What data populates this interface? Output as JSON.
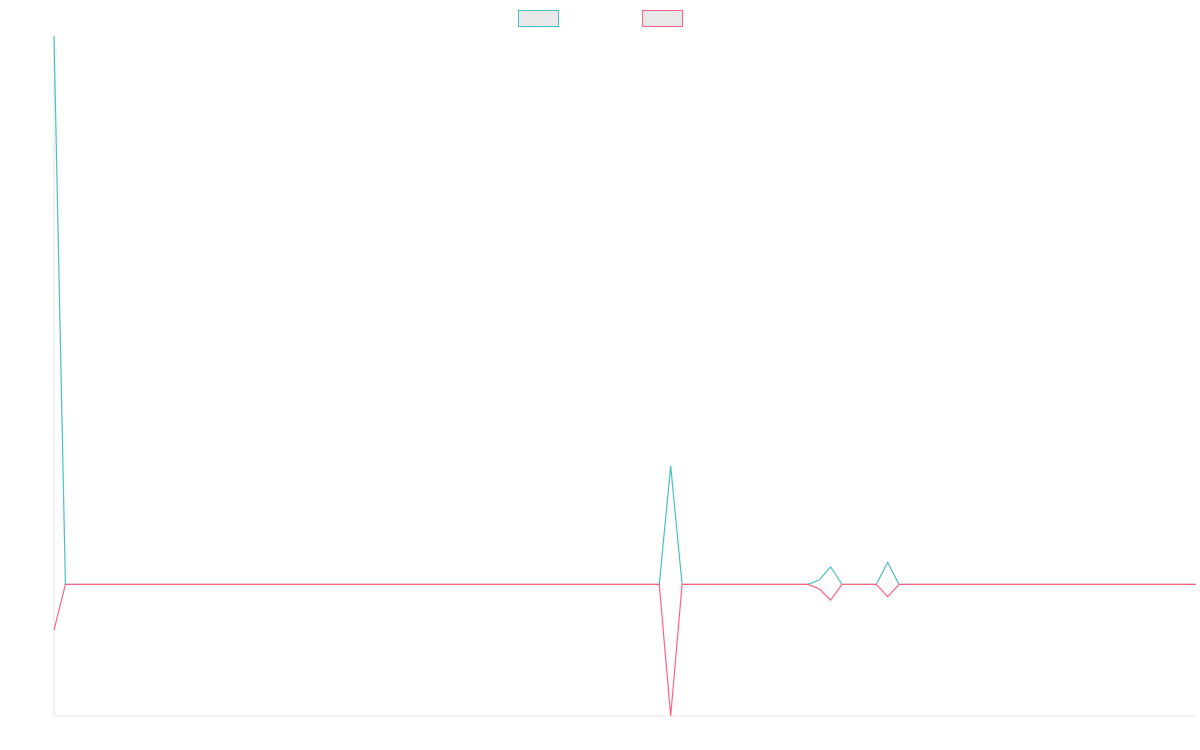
{
  "chart_data": {
    "type": "line",
    "title": "",
    "xlabel": "",
    "ylabel": "",
    "grid": false,
    "legend_placement": "top-center",
    "x": [
      0,
      1,
      2,
      3,
      4,
      5,
      6,
      7,
      8,
      9,
      10,
      11,
      12,
      13,
      14,
      15,
      16,
      17,
      18,
      19,
      20,
      21,
      22,
      23,
      24,
      25,
      26,
      27,
      28,
      29,
      30,
      31,
      32,
      33,
      34,
      35,
      36,
      37,
      38,
      39,
      40,
      41,
      42,
      43,
      44,
      45,
      46,
      47,
      48,
      49,
      50,
      51,
      52,
      53,
      54,
      55,
      56,
      57,
      58,
      59,
      60,
      61,
      62,
      63,
      64,
      65,
      66,
      67,
      68,
      69,
      70,
      71,
      72,
      73,
      74,
      75,
      76,
      77,
      78,
      79,
      80,
      81,
      82,
      83,
      84,
      85,
      86,
      87,
      88,
      89,
      90,
      91,
      92,
      93,
      94,
      95,
      96,
      97,
      98,
      99,
      100
    ],
    "ylim": [
      -1.5,
      6.25
    ],
    "series": [
      {
        "name": "",
        "color": "#4bc0c0",
        "values": [
          6.25,
          0,
          0,
          0,
          0,
          0,
          0,
          0,
          0,
          0,
          0,
          0,
          0,
          0,
          0,
          0,
          0,
          0,
          0,
          0,
          0,
          0,
          0,
          0,
          0,
          0,
          0,
          0,
          0,
          0,
          0,
          0,
          0,
          0,
          0,
          0,
          0,
          0,
          0,
          0,
          0,
          0,
          0,
          0,
          0,
          0,
          0,
          0,
          0,
          0,
          0,
          0,
          0,
          0,
          1.35,
          0,
          0,
          0,
          0,
          0,
          0,
          0,
          0,
          0,
          0,
          0,
          0,
          0.05,
          0.2,
          0,
          0,
          0,
          0,
          0.25,
          0,
          0,
          0,
          0,
          0,
          0,
          0,
          0,
          0,
          0,
          0,
          0,
          0,
          0,
          0,
          0,
          0,
          0,
          0,
          0,
          0,
          0,
          0,
          0,
          0,
          0,
          0
        ]
      },
      {
        "name": "",
        "color": "#ff6384",
        "values": [
          -0.52,
          0,
          0,
          0,
          0,
          0,
          0,
          0,
          0,
          0,
          0,
          0,
          0,
          0,
          0,
          0,
          0,
          0,
          0,
          0,
          0,
          0,
          0,
          0,
          0,
          0,
          0,
          0,
          0,
          0,
          0,
          0,
          0,
          0,
          0,
          0,
          0,
          0,
          0,
          0,
          0,
          0,
          0,
          0,
          0,
          0,
          0,
          0,
          0,
          0,
          0,
          0,
          0,
          0,
          -1.5,
          0,
          0,
          0,
          0,
          0,
          0,
          0,
          0,
          0,
          0,
          0,
          0,
          -0.05,
          -0.18,
          0,
          0,
          0,
          0,
          -0.14,
          0,
          0,
          0,
          0,
          0,
          0,
          0,
          0,
          0,
          0,
          0,
          0,
          0,
          0,
          0,
          0,
          0,
          0,
          0,
          0,
          0,
          0,
          0,
          0,
          0,
          0,
          0
        ]
      }
    ]
  }
}
